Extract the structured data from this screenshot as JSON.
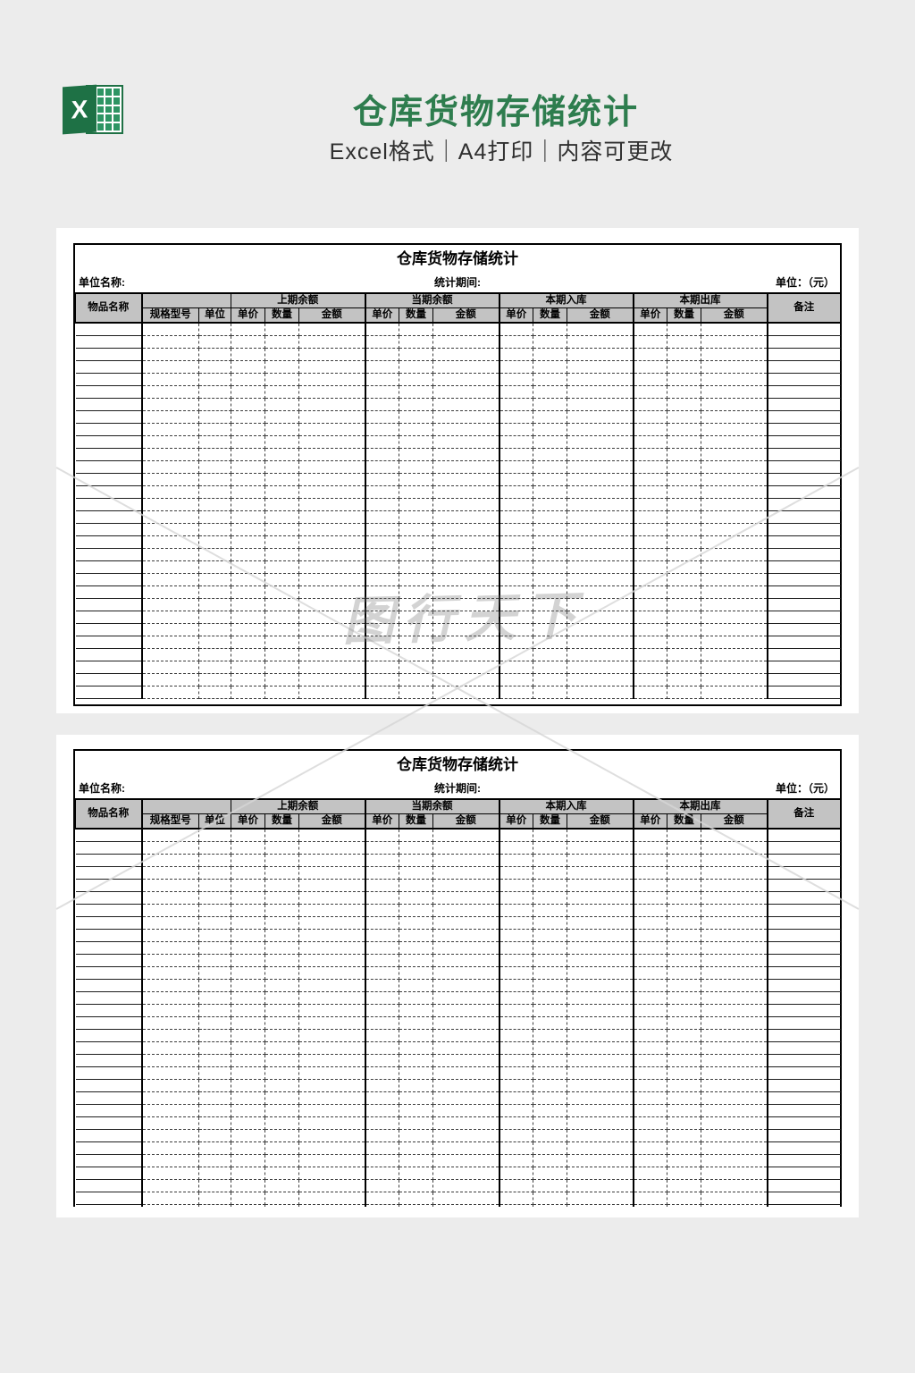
{
  "page": {
    "background_color": "#ececec"
  },
  "header": {
    "title": "仓库货物存储统计",
    "subtitle": "Excel格式｜A4打印｜内容可更改",
    "title_color": "#2e7d4e",
    "excel_icon": {
      "letter": "X",
      "green": "#1e7145"
    }
  },
  "watermark": {
    "text": "图行天下"
  },
  "sheet": {
    "card_title": "仓库货物存储统计",
    "info": {
      "unit_name": "单位名称:",
      "period": "统计期间:",
      "currency": "单位：（元）"
    },
    "columns": {
      "item": "物品名称",
      "spec": "规格型号",
      "unit": "单位",
      "groups": [
        "上期余额",
        "当期余额",
        "本期入库",
        "本期出库"
      ],
      "sub": [
        "单价",
        "数量",
        "金额"
      ],
      "remark": "备注"
    },
    "header_bg": "#c3c3c3",
    "rows": {
      "page1": 30,
      "page2": 31
    }
  }
}
